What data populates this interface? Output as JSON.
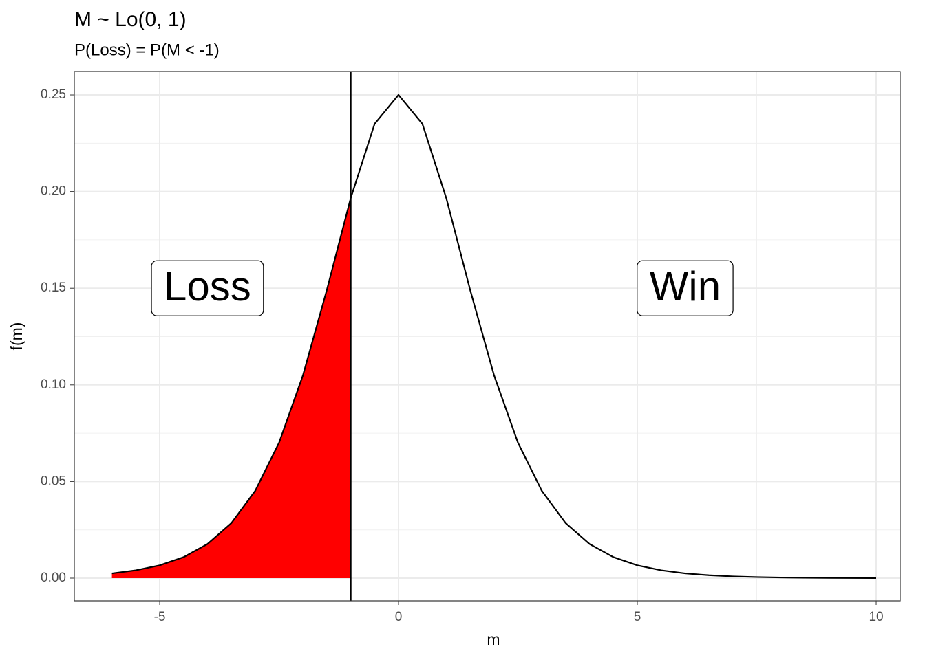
{
  "chart_data": {
    "type": "line",
    "title": "M ~ Lo(0, 1)",
    "subtitle": "P(Loss) = P(M < -1)",
    "x_label": "m",
    "y_label": "f(m)",
    "series": [
      {
        "color": "#000000",
        "x": [
          -6,
          -5.5,
          -5,
          -4.5,
          -4,
          -3.5,
          -3,
          -2.5,
          -2,
          -1.5,
          -1,
          -0.5,
          0,
          0.5,
          1,
          1.5,
          2,
          2.5,
          3,
          3.5,
          4,
          4.5,
          5,
          5.5,
          6,
          6.5,
          7,
          7.5,
          8,
          8.5,
          9,
          9.5,
          10
        ],
        "values": [
          0.002467,
          0.004054,
          0.006648,
          0.010866,
          0.017663,
          0.028453,
          0.045177,
          0.070104,
          0.104994,
          0.149146,
          0.196612,
          0.235004,
          0.25,
          0.235004,
          0.196612,
          0.149146,
          0.104994,
          0.070104,
          0.045177,
          0.028453,
          0.017663,
          0.010866,
          0.006648,
          0.004054,
          0.002467,
          0.001499,
          0.00091,
          0.000553,
          0.000335,
          0.000203,
          0.000123,
          7.5e-05,
          4.5e-05
        ]
      }
    ],
    "shade_color": "#ff0000",
    "vline": -1,
    "annotations": [
      {
        "text": "Loss",
        "x": -4,
        "y": 0.15
      },
      {
        "text": "Win",
        "x": 6,
        "y": 0.15
      }
    ],
    "xlim": [
      -6.787,
      10.504
    ],
    "ylim": [
      -0.01174,
      0.2621
    ],
    "xticks": [
      -5,
      0,
      5,
      10
    ],
    "yticks": [
      {
        "value": 0,
        "label": "0.00"
      },
      {
        "value": 0.05,
        "label": "0.05"
      },
      {
        "value": 0.1,
        "label": "0.10"
      },
      {
        "value": 0.15,
        "label": "0.15"
      },
      {
        "value": 0.2,
        "label": "0.20"
      },
      {
        "value": 0.25,
        "label": "0.25"
      }
    ],
    "grid": true
  }
}
